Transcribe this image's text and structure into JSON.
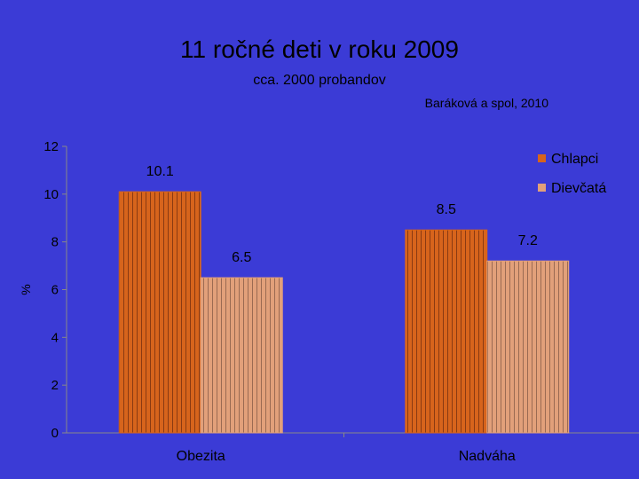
{
  "header": {
    "title": "11 ročné deti v roku 2009",
    "subtitle": "cca. 2000 probandov",
    "source": "Baráková a spol, 2010"
  },
  "chart_data": {
    "type": "bar",
    "categories": [
      "Obezita",
      "Nadváha"
    ],
    "series": [
      {
        "name": "Chlapci",
        "values": [
          10.1,
          8.5
        ],
        "color": "#d7641c"
      },
      {
        "name": "Dievčatá",
        "values": [
          6.5,
          7.2
        ],
        "color": "#e2a07a"
      }
    ],
    "ylabel": "%",
    "ylim": [
      0,
      12
    ],
    "yticks": [
      0,
      2,
      4,
      6,
      8,
      10,
      12
    ],
    "data_labels": [
      "10.1",
      "6.5",
      "8.5",
      "7.2"
    ],
    "legend_position": "top-right",
    "grid": false
  }
}
